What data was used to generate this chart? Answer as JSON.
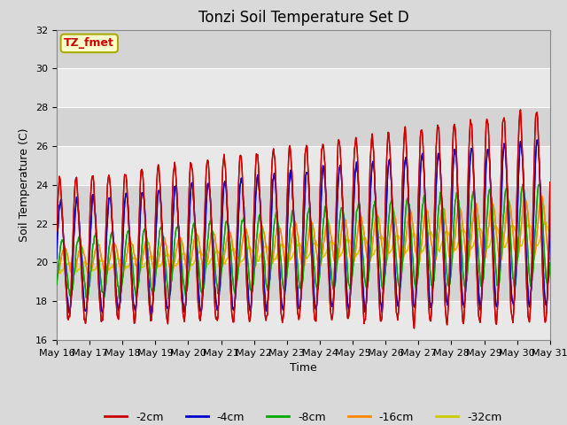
{
  "title": "Tonzi Soil Temperature Set D",
  "xlabel": "Time",
  "ylabel": "Soil Temperature (C)",
  "ylim": [
    16,
    32
  ],
  "yticks": [
    16,
    18,
    20,
    22,
    24,
    26,
    28,
    30,
    32
  ],
  "legend_labels": [
    "-2cm",
    "-4cm",
    "-8cm",
    "-16cm",
    "-32cm"
  ],
  "legend_colors": [
    "#cc0000",
    "#0000cc",
    "#00aa00",
    "#ff8800",
    "#cccc00"
  ],
  "annotation_text": "TZ_fmet",
  "annotation_bg": "#ffffcc",
  "annotation_border": "#aaaa00",
  "background_color": "#e8e8e8",
  "grid_color": "#ffffff",
  "title_fontsize": 12,
  "axis_fontsize": 9,
  "tick_fontsize": 8,
  "legend_fontsize": 9,
  "n_points": 720,
  "date_start": 16,
  "date_end": 31
}
